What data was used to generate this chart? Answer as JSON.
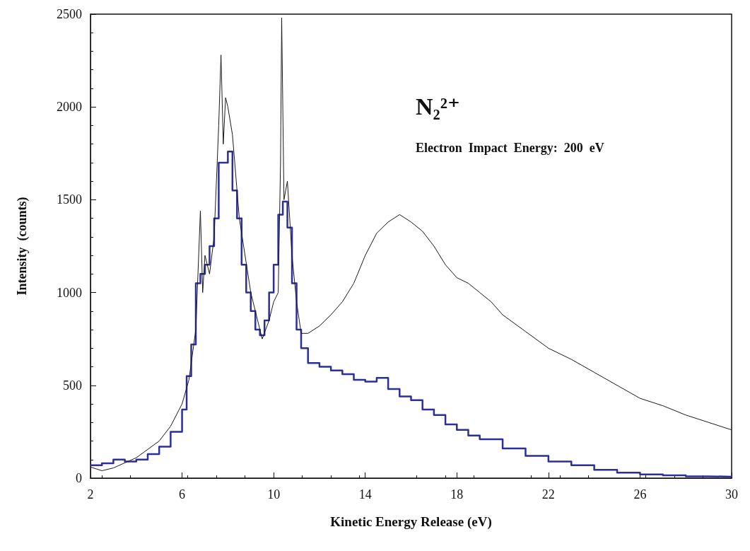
{
  "chart_data": {
    "type": "line",
    "xlabel": "Kinetic Energy Release (eV)",
    "ylabel": "Intensity  (counts)",
    "annotations": [
      "N₂²⁺",
      "Electron  Impact  Energy:  200  eV"
    ],
    "xlim": [
      2,
      30
    ],
    "xticks": [
      2,
      6,
      10,
      14,
      18,
      22,
      26,
      30
    ],
    "ylim": [
      0,
      2500
    ],
    "yticks": [
      0,
      500,
      1000,
      1500,
      2000,
      2500
    ],
    "grid": false,
    "marker": "none",
    "line_style": "solid",
    "series": [
      {
        "color": "#1a1a1a",
        "x": [
          2,
          2.5,
          3,
          4,
          5,
          5.5,
          6,
          6.3,
          6.6,
          6.8,
          6.9,
          7,
          7.2,
          7.4,
          7.6,
          7.7,
          7.8,
          7.9,
          8,
          8.2,
          8.5,
          9,
          9.3,
          9.5,
          9.8,
          10,
          10.2,
          10.3,
          10.35,
          10.45,
          10.6,
          10.8,
          11,
          11.2,
          11.5,
          12,
          12.5,
          13,
          13.5,
          14,
          14.5,
          15,
          15.5,
          16,
          16.5,
          17,
          17.5,
          18,
          18.5,
          19,
          19.5,
          20,
          21,
          22,
          23,
          24,
          25,
          26,
          27,
          28,
          29,
          30
        ],
        "values": [
          60,
          40,
          55,
          110,
          200,
          280,
          400,
          530,
          800,
          1440,
          1000,
          1200,
          1100,
          1300,
          1900,
          2280,
          1800,
          2050,
          2000,
          1850,
          1400,
          1000,
          850,
          750,
          850,
          950,
          1000,
          1700,
          2480,
          1500,
          1600,
          1200,
          950,
          780,
          780,
          820,
          880,
          950,
          1050,
          1200,
          1320,
          1380,
          1420,
          1380,
          1330,
          1250,
          1150,
          1080,
          1050,
          1000,
          950,
          880,
          790,
          700,
          640,
          570,
          500,
          430,
          390,
          340,
          300,
          260
        ]
      },
      {
        "type": "step",
        "color": "#2b2f9a",
        "x": [
          2,
          2.5,
          3,
          3.5,
          4,
          4.5,
          5,
          5.5,
          6,
          6.2,
          6.4,
          6.6,
          6.8,
          7,
          7.2,
          7.4,
          7.6,
          7.8,
          8,
          8.2,
          8.4,
          8.6,
          8.8,
          9,
          9.2,
          9.4,
          9.6,
          9.8,
          10,
          10.2,
          10.4,
          10.6,
          10.8,
          11,
          11.2,
          11.5,
          12,
          12.5,
          13,
          13.5,
          14,
          14.5,
          15,
          15.5,
          16,
          16.5,
          17,
          17.5,
          18,
          18.5,
          19,
          20,
          21,
          22,
          23,
          24,
          25,
          26,
          27,
          28,
          29,
          30
        ],
        "values": [
          70,
          80,
          100,
          90,
          100,
          130,
          170,
          250,
          370,
          550,
          720,
          1050,
          1100,
          1150,
          1250,
          1400,
          1700,
          1700,
          1760,
          1550,
          1400,
          1150,
          1000,
          900,
          800,
          770,
          850,
          1000,
          1150,
          1420,
          1490,
          1350,
          1050,
          800,
          700,
          620,
          600,
          580,
          560,
          530,
          520,
          540,
          480,
          440,
          420,
          370,
          340,
          290,
          260,
          230,
          210,
          160,
          120,
          90,
          70,
          45,
          30,
          20,
          15,
          10,
          8,
          5
        ]
      }
    ]
  }
}
